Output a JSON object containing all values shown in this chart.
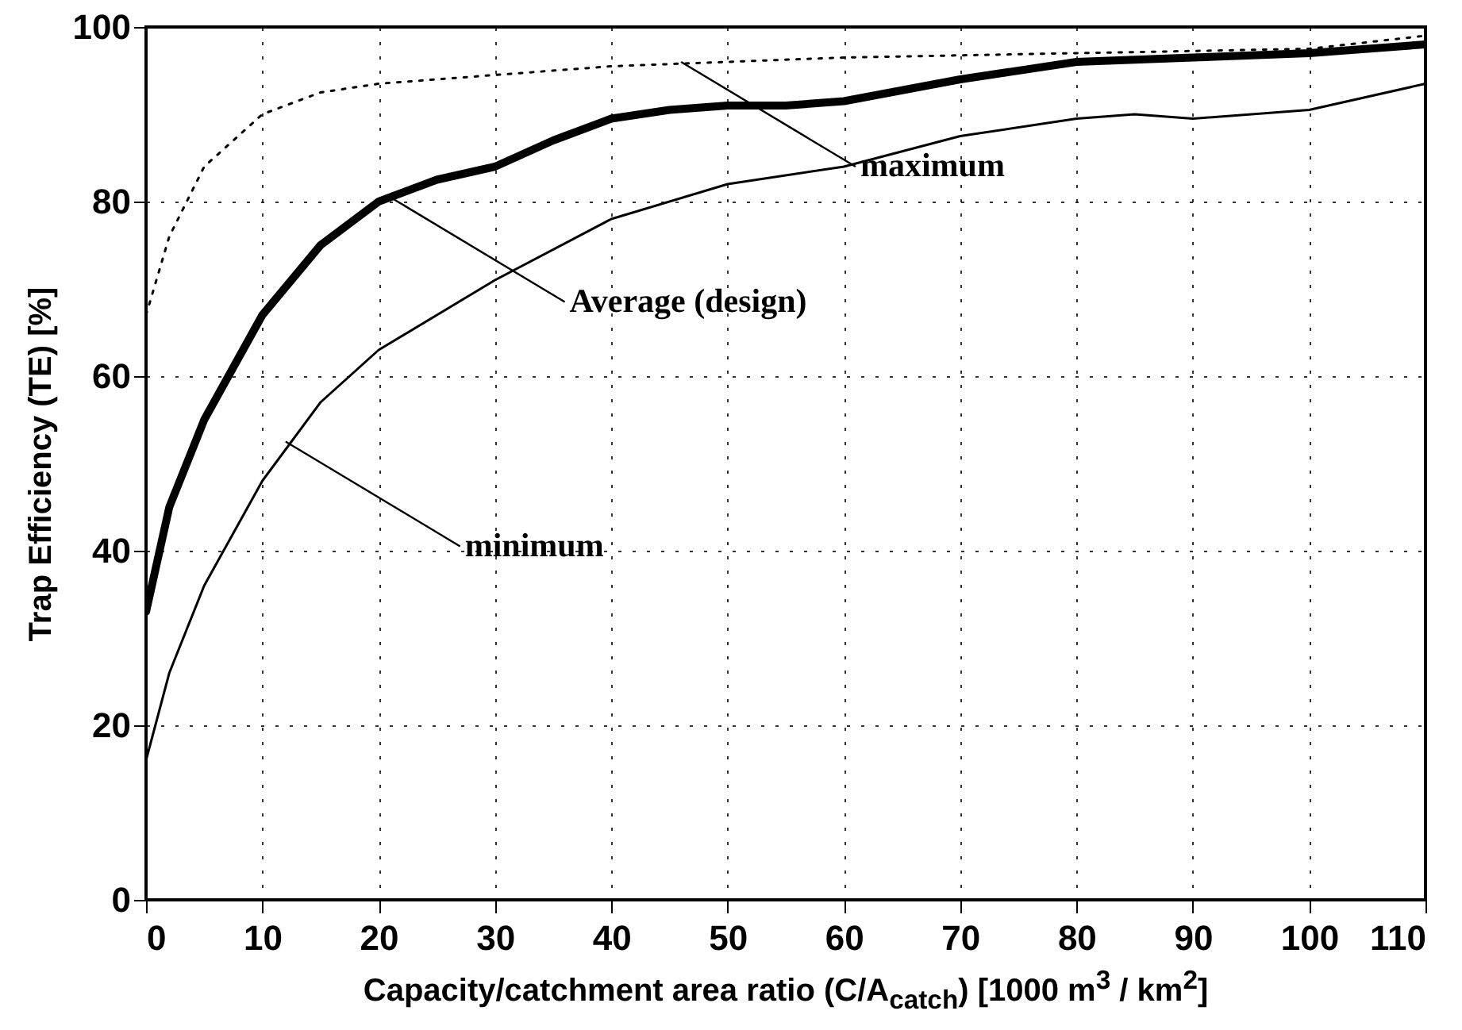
{
  "chart_data": {
    "type": "line",
    "xlabel": "Capacity/catchment area ratio (C/A$_{catch}$) [1000 m$^{3}$ / km$^{2}$]",
    "ylabel": "Trap Efficiency (TE) [%]",
    "xlim": [
      0,
      110
    ],
    "ylim": [
      0,
      100
    ],
    "xticks": [
      0,
      10,
      20,
      30,
      40,
      50,
      60,
      70,
      80,
      90,
      100,
      110
    ],
    "yticks": [
      0,
      20,
      40,
      60,
      80,
      100
    ],
    "grid": true,
    "series": [
      {
        "color": "#000000",
        "line_style": "solid",
        "x": [
          0,
          2,
          5,
          10,
          15,
          20,
          25,
          30,
          35,
          40,
          45,
          50,
          55,
          60,
          70,
          80,
          90,
          100,
          110
        ],
        "values": [
          33,
          45,
          55,
          67,
          75,
          80,
          82.5,
          84,
          87,
          89.5,
          90.5,
          91,
          91,
          91.5,
          94,
          96,
          96.5,
          97,
          98
        ]
      },
      {
        "color": "#000000",
        "line_style": "solid",
        "x": [
          0,
          2,
          5,
          10,
          15,
          20,
          30,
          40,
          50,
          60,
          70,
          80,
          85,
          90,
          100,
          110
        ],
        "values": [
          16,
          26,
          36,
          48,
          57,
          63,
          71,
          78,
          82,
          84,
          87.5,
          89.5,
          90,
          89.5,
          90.5,
          93.5
        ]
      },
      {
        "color": "#000000",
        "line_style": "dotted",
        "x": [
          0,
          2,
          5,
          10,
          15,
          20,
          30,
          40,
          50,
          60,
          80,
          100,
          110
        ],
        "values": [
          67,
          76,
          84,
          90,
          92.5,
          93.5,
          94.5,
          95.5,
          96,
          96.5,
          97,
          97.5,
          99
        ]
      }
    ],
    "annotations": [
      {
        "text": "maximum",
        "x": 46,
        "y": 96
      },
      {
        "text": "Average (design)",
        "x": 21,
        "y": 80.5
      },
      {
        "text": "minimum",
        "x": 12,
        "y": 52.5
      }
    ]
  }
}
